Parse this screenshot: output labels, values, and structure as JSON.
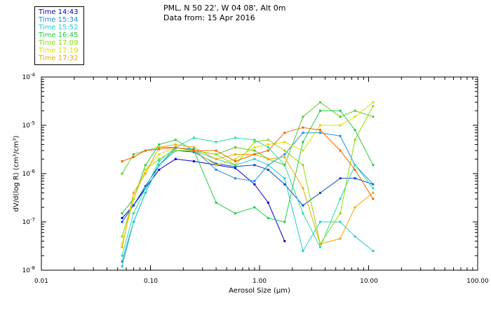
{
  "header": {
    "line1": "PML, N 50 22', W 04 08', Alt 0m",
    "line2": "Data from: 15 Apr 2016"
  },
  "chart_data": {
    "type": "line",
    "title": "PML, N 50 22', W 04 08', Alt 0m",
    "subtitle": "Data from: 15 Apr 2016",
    "xlabel": "Aerosol Size (μm)",
    "ylabel": "dV/d(log R) (cm³/cm³)",
    "xscale": "log",
    "yscale": "log",
    "xlim": [
      0.01,
      100
    ],
    "ylim": [
      1e-08,
      0.0001
    ],
    "x_tick_labels": [
      "0.01",
      "0.10",
      "1.00",
      "10.00",
      "100.00"
    ],
    "y_tick_labels": [
      {
        "mant": "10",
        "exp": "-8"
      },
      {
        "mant": "10",
        "exp": "-7"
      },
      {
        "mant": "10",
        "exp": "-6"
      },
      {
        "mant": "10",
        "exp": "-5"
      },
      {
        "mant": "10",
        "exp": "-4"
      }
    ],
    "legend_position": "top-left",
    "series": [
      {
        "name": "Time 14:43",
        "color": "#0000cc",
        "x": [
          0.055,
          0.07,
          0.09,
          0.12,
          0.17,
          0.25,
          0.4,
          0.6,
          0.9,
          1.2,
          1.7
        ],
        "y": [
          1.2e-07,
          2.2e-07,
          5e-07,
          1.2e-06,
          2e-06,
          1.8e-06,
          1.5e-06,
          1.3e-06,
          6e-07,
          2.5e-07,
          4e-08
        ]
      },
      {
        "name": "Time 14:43",
        "color": "#0044cc",
        "x": [
          0.055,
          0.07,
          0.09,
          0.12,
          0.17,
          0.25,
          0.4,
          0.6,
          0.9,
          1.2,
          1.7,
          2.5,
          3.6,
          5.5,
          7.5,
          11
        ],
        "y": [
          1e-07,
          2.2e-07,
          5.5e-07,
          1.5e-06,
          3e-06,
          2.8e-06,
          1.6e-06,
          1.4e-06,
          1.5e-06,
          1.2e-06,
          6e-07,
          2.2e-07,
          4e-07,
          8e-07,
          8e-07,
          6e-07
        ]
      },
      {
        "name": "Time 15:34",
        "color": "#2288dd",
        "x": [
          0.055,
          0.07,
          0.09,
          0.12,
          0.17,
          0.25,
          0.4,
          0.6,
          0.9,
          1.2,
          1.7,
          2.5,
          3.6,
          5.5,
          7.5,
          11
        ],
        "y": [
          1.5e-08,
          1e-07,
          4e-07,
          1.5e-06,
          3.4e-06,
          3.2e-06,
          1.2e-06,
          8e-07,
          7e-07,
          1.5e-06,
          2.5e-06,
          7e-06,
          7e-06,
          6e-06,
          1.5e-06,
          6e-07
        ]
      },
      {
        "name": "Time 15:52",
        "color": "#22cccc",
        "x": [
          0.055,
          0.07,
          0.09,
          0.12,
          0.17,
          0.25,
          0.4,
          0.6,
          0.9,
          1.2,
          1.7,
          2.5,
          3.6,
          5.5,
          7.5,
          11
        ],
        "y": [
          1.2e-08,
          1e-07,
          4e-07,
          1.5e-06,
          3e-06,
          3e-06,
          2e-06,
          1.5e-06,
          2e-06,
          1.5e-06,
          8e-07,
          2.5e-08,
          1e-07,
          1e-07,
          5e-08,
          2.5e-08
        ]
      },
      {
        "name": "Time 15:52",
        "color": "#22ddaa",
        "x": [
          0.055,
          0.07,
          0.09,
          0.12,
          0.17,
          0.25,
          0.4,
          0.6,
          0.9,
          1.2,
          1.7,
          2.5,
          3.6,
          5.5,
          7.5,
          11
        ],
        "y": [
          2e-08,
          1.5e-07,
          5e-07,
          1.8e-06,
          3.5e-06,
          5.5e-06,
          4.5e-06,
          5.5e-06,
          5e-06,
          3.5e-06,
          1.5e-06,
          1.5e-07,
          3e-08,
          3e-07,
          1.5e-06,
          5e-07
        ]
      },
      {
        "name": "Time 16:45",
        "color": "#22cc44",
        "x": [
          0.055,
          0.07,
          0.09,
          0.12,
          0.17,
          0.25,
          0.4,
          0.6,
          0.9,
          1.2,
          1.7,
          2.5,
          3.6,
          5.5,
          7.5,
          11
        ],
        "y": [
          1.5e-07,
          3e-07,
          1.5e-06,
          4e-06,
          5e-06,
          3e-06,
          2.5e-07,
          1.5e-07,
          2e-07,
          1.2e-07,
          1e-07,
          4.5e-06,
          2e-05,
          2e-05,
          8e-06,
          1.5e-06
        ]
      },
      {
        "name": "Time 16:45",
        "color": "#55cc22",
        "x": [
          0.055,
          0.07,
          0.09,
          0.12,
          0.17,
          0.25,
          0.4,
          0.6,
          0.9,
          1.2,
          1.7,
          2.5,
          3.6,
          5.5,
          7.5,
          11
        ],
        "y": [
          1e-06,
          2.5e-06,
          3e-06,
          3.5e-06,
          3.5e-06,
          3e-06,
          2.5e-06,
          3.5e-06,
          3e-06,
          2e-06,
          1.5e-06,
          1.5e-05,
          3e-05,
          1.5e-05,
          2e-05,
          1.5e-05
        ]
      },
      {
        "name": "Time 17:09",
        "color": "#88dd00",
        "x": [
          0.055,
          0.07,
          0.09,
          0.12,
          0.17,
          0.25,
          0.4,
          0.6,
          0.9,
          1.2,
          1.7,
          2.5,
          3.6,
          5.5,
          7.5,
          11
        ],
        "y": [
          5e-08,
          3e-07,
          1.2e-06,
          2e-06,
          3e-06,
          3e-06,
          2.5e-06,
          1.5e-06,
          4.5e-06,
          5e-06,
          3e-06,
          1.5e-06,
          3.5e-08,
          1.5e-07,
          5e-06,
          2.5e-05
        ]
      },
      {
        "name": "Time 17:19",
        "color": "#dddd00",
        "x": [
          0.055,
          0.07,
          0.09,
          0.12,
          0.17,
          0.25,
          0.4,
          0.6,
          0.9,
          1.2,
          1.7,
          2.5,
          3.6,
          5.5,
          7.5,
          11
        ],
        "y": [
          3.5e-08,
          3e-07,
          1.2e-06,
          2.5e-06,
          3.5e-06,
          3e-06,
          1.5e-06,
          2e-06,
          3.5e-06,
          4e-06,
          4.5e-06,
          3e-06,
          1e-05,
          1e-05,
          1.5e-05,
          3e-05
        ]
      },
      {
        "name": "Time 17:32",
        "color": "#eeaa00",
        "x": [
          0.055,
          0.07,
          0.09,
          0.12,
          0.17,
          0.25,
          0.4,
          0.6,
          0.9,
          1.2,
          1.7,
          2.5,
          3.6,
          5.5,
          7.5,
          11
        ],
        "y": [
          3e-08,
          4e-07,
          1e-06,
          3.5e-06,
          4e-06,
          3.5e-06,
          2e-06,
          2.5e-06,
          2.5e-06,
          2e-06,
          2.2e-06,
          5e-07,
          3.5e-08,
          4.5e-08,
          2e-07,
          4e-07
        ]
      },
      {
        "name": "Time 17:32",
        "color": "#ee6600",
        "x": [
          0.055,
          0.07,
          0.09,
          0.12,
          0.17,
          0.25,
          0.4,
          0.6,
          0.9,
          1.2,
          1.7,
          2.5,
          3.6,
          5.5,
          7.5,
          11
        ],
        "y": [
          1.8e-06,
          2.2e-06,
          3e-06,
          3.2e-06,
          3.5e-06,
          3e-06,
          3e-06,
          1.8e-06,
          2.5e-06,
          3e-06,
          7e-06,
          9e-06,
          8e-06,
          3e-06,
          1.2e-06,
          3e-07
        ]
      }
    ],
    "legend_entries": [
      {
        "label": "Time 14:43",
        "color": "#0000cc"
      },
      {
        "label": "Time 15:34",
        "color": "#2288dd"
      },
      {
        "label": "Time 15:52",
        "color": "#22cccc"
      },
      {
        "label": "Time 16:45",
        "color": "#22cc44"
      },
      {
        "label": "Time 17:09",
        "color": "#88dd00"
      },
      {
        "label": "Time 17:19",
        "color": "#dddd00"
      },
      {
        "label": "Time 17:32",
        "color": "#eeaa00"
      }
    ]
  }
}
